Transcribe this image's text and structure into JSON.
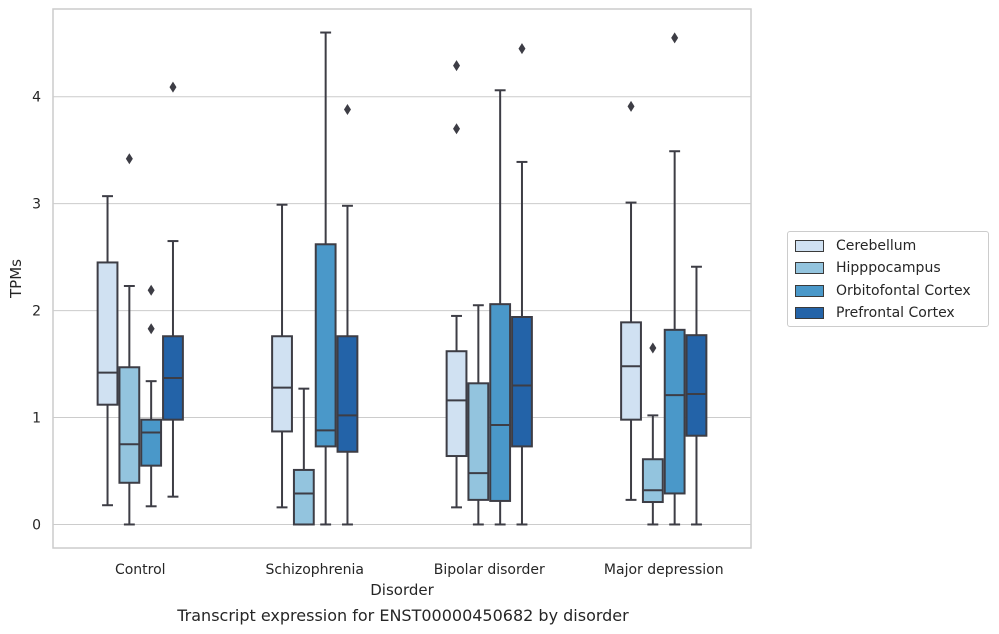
{
  "caption": "Transcript expression for ENST00000450682 by disorder",
  "legend": {
    "items": [
      {
        "label": "Cerebellum",
        "color": "#d0e1f2"
      },
      {
        "label": "Hipppocampus",
        "color": "#93c4de"
      },
      {
        "label": "Orbitofontal Cortex",
        "color": "#4a98c9"
      },
      {
        "label": "Prefrontal Cortex",
        "color": "#2363a8"
      }
    ]
  },
  "chart_data": {
    "type": "box",
    "xlabel": "Disorder",
    "ylabel": "TPMs",
    "categories": [
      "Control",
      "Schizophrenia",
      "Bipolar disorder",
      "Major depression"
    ],
    "yticks": [
      0,
      1,
      2,
      3,
      4
    ],
    "ylim": [
      -0.22,
      4.82
    ],
    "grid": true,
    "legend_position": "right",
    "series": [
      {
        "name": "Cerebellum",
        "color": "#d0e1f2",
        "boxes": [
          {
            "whislo": 0.18,
            "q1": 1.12,
            "med": 1.42,
            "q3": 2.45,
            "whishi": 3.07,
            "fliers": []
          },
          {
            "whislo": 0.16,
            "q1": 0.87,
            "med": 1.28,
            "q3": 1.76,
            "whishi": 2.99,
            "fliers": []
          },
          {
            "whislo": 0.16,
            "q1": 0.64,
            "med": 1.16,
            "q3": 1.62,
            "whishi": 1.95,
            "fliers": [
              3.7,
              4.29
            ]
          },
          {
            "whislo": 0.23,
            "q1": 0.98,
            "med": 1.48,
            "q3": 1.89,
            "whishi": 3.01,
            "fliers": [
              3.91
            ]
          }
        ]
      },
      {
        "name": "Hipppocampus",
        "color": "#93c4de",
        "boxes": [
          {
            "whislo": 0.0,
            "q1": 0.39,
            "med": 0.75,
            "q3": 1.47,
            "whishi": 2.23,
            "fliers": [
              3.42
            ]
          },
          {
            "whislo": 0.0,
            "q1": 0.0,
            "med": 0.29,
            "q3": 0.51,
            "whishi": 1.27,
            "fliers": []
          },
          {
            "whislo": 0.0,
            "q1": 0.23,
            "med": 0.48,
            "q3": 1.32,
            "whishi": 2.05,
            "fliers": []
          },
          {
            "whislo": 0.0,
            "q1": 0.21,
            "med": 0.32,
            "q3": 0.61,
            "whishi": 1.02,
            "fliers": [
              1.65
            ]
          }
        ]
      },
      {
        "name": "Orbitofontal Cortex",
        "color": "#4a98c9",
        "boxes": [
          {
            "whislo": 0.17,
            "q1": 0.55,
            "med": 0.86,
            "q3": 0.98,
            "whishi": 1.34,
            "fliers": [
              1.83,
              2.19
            ]
          },
          {
            "whislo": 0.0,
            "q1": 0.73,
            "med": 0.88,
            "q3": 2.62,
            "whishi": 4.6,
            "fliers": []
          },
          {
            "whislo": 0.0,
            "q1": 0.22,
            "med": 0.93,
            "q3": 2.06,
            "whishi": 4.06,
            "fliers": []
          },
          {
            "whislo": 0.0,
            "q1": 0.29,
            "med": 1.21,
            "q3": 1.82,
            "whishi": 3.49,
            "fliers": [
              4.55
            ]
          }
        ]
      },
      {
        "name": "Prefrontal Cortex",
        "color": "#2363a8",
        "boxes": [
          {
            "whislo": 0.26,
            "q1": 0.98,
            "med": 1.37,
            "q3": 1.76,
            "whishi": 2.65,
            "fliers": [
              4.09
            ]
          },
          {
            "whislo": 0.0,
            "q1": 0.68,
            "med": 1.02,
            "q3": 1.76,
            "whishi": 2.98,
            "fliers": [
              3.88
            ]
          },
          {
            "whislo": 0.0,
            "q1": 0.73,
            "med": 1.3,
            "q3": 1.94,
            "whishi": 3.39,
            "fliers": [
              4.45
            ]
          },
          {
            "whislo": 0.0,
            "q1": 0.83,
            "med": 1.22,
            "q3": 1.77,
            "whishi": 2.41,
            "fliers": []
          }
        ]
      }
    ]
  }
}
